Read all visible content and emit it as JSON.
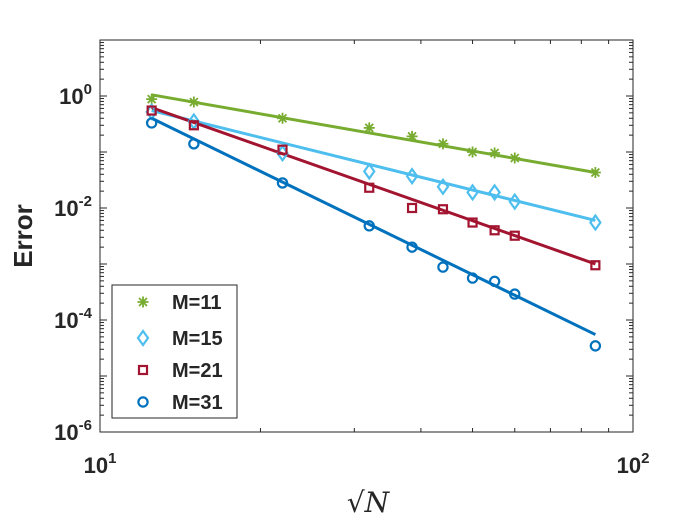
{
  "chart_data": {
    "type": "scatter",
    "title": "",
    "xlabel": "√N",
    "ylabel": "Error",
    "xscale": "log",
    "yscale": "log",
    "xlim": [
      10,
      100
    ],
    "ylim": [
      1e-06,
      10
    ],
    "x_ticks": [
      {
        "base": "10",
        "exp": "1"
      },
      {
        "base": "10",
        "exp": "2"
      }
    ],
    "y_ticks": [
      {
        "base": "10",
        "exp": "0"
      },
      {
        "base": "10",
        "exp": "-2"
      },
      {
        "base": "10",
        "exp": "-4"
      },
      {
        "base": "10",
        "exp": "-6"
      }
    ],
    "legend_position": "bottom-left",
    "series": [
      {
        "name": "M=11",
        "marker": "star",
        "color": "#77AC30",
        "x": [
          12.5,
          15,
          22,
          32,
          38.5,
          44,
          50,
          55,
          60,
          85
        ],
        "values": [
          0.88,
          0.78,
          0.4,
          0.27,
          0.19,
          0.14,
          0.1,
          0.096,
          0.078,
          0.043
        ],
        "fit": {
          "x": [
            12.5,
            85
          ],
          "y": [
            1.05,
            0.043
          ]
        }
      },
      {
        "name": "M=15",
        "marker": "diamond",
        "color": "#4DBEEE",
        "x": [
          12.5,
          15,
          22,
          32,
          38.5,
          44,
          50,
          55,
          60,
          85
        ],
        "values": [
          0.52,
          0.35,
          0.095,
          0.045,
          0.037,
          0.024,
          0.019,
          0.019,
          0.013,
          0.0055
        ],
        "fit": {
          "x": [
            12.5,
            85
          ],
          "y": [
            0.55,
            0.006
          ]
        }
      },
      {
        "name": "M=21",
        "marker": "square",
        "color": "#A2142F",
        "x": [
          12.5,
          15,
          22,
          32,
          38.5,
          44,
          50,
          55,
          60,
          85
        ],
        "values": [
          0.55,
          0.3,
          0.11,
          0.023,
          0.01,
          0.0095,
          0.0055,
          0.004,
          0.0032,
          0.00095
        ],
        "fit": {
          "x": [
            12.5,
            85
          ],
          "y": [
            0.62,
            0.001
          ]
        }
      },
      {
        "name": "M=31",
        "marker": "circle",
        "color": "#0072BD",
        "x": [
          12.5,
          15,
          22,
          32,
          38.5,
          44,
          50,
          55,
          60,
          85
        ],
        "values": [
          0.33,
          0.14,
          0.028,
          0.0048,
          0.002,
          0.00088,
          0.00056,
          0.00049,
          0.00029,
          3.45e-05
        ],
        "fit": {
          "x": [
            12.5,
            85
          ],
          "y": [
            0.4,
            5.5e-05
          ]
        }
      }
    ]
  }
}
